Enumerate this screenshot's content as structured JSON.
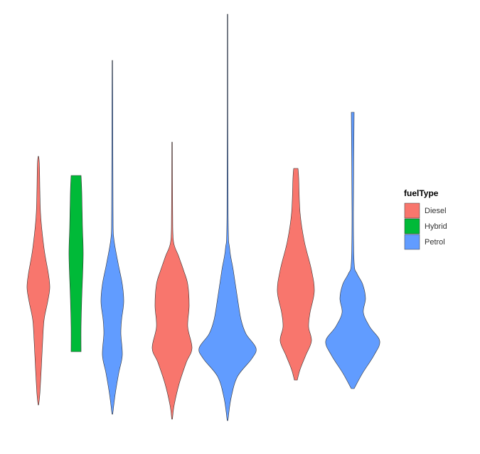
{
  "chart_data": {
    "type": "violin",
    "legend_title": "fuelType",
    "series": [
      {
        "name": "Diesel",
        "color": "#f8766d"
      },
      {
        "name": "Hybrid",
        "color": "#00ba38"
      },
      {
        "name": "Petrol",
        "color": "#619cff"
      }
    ]
  }
}
